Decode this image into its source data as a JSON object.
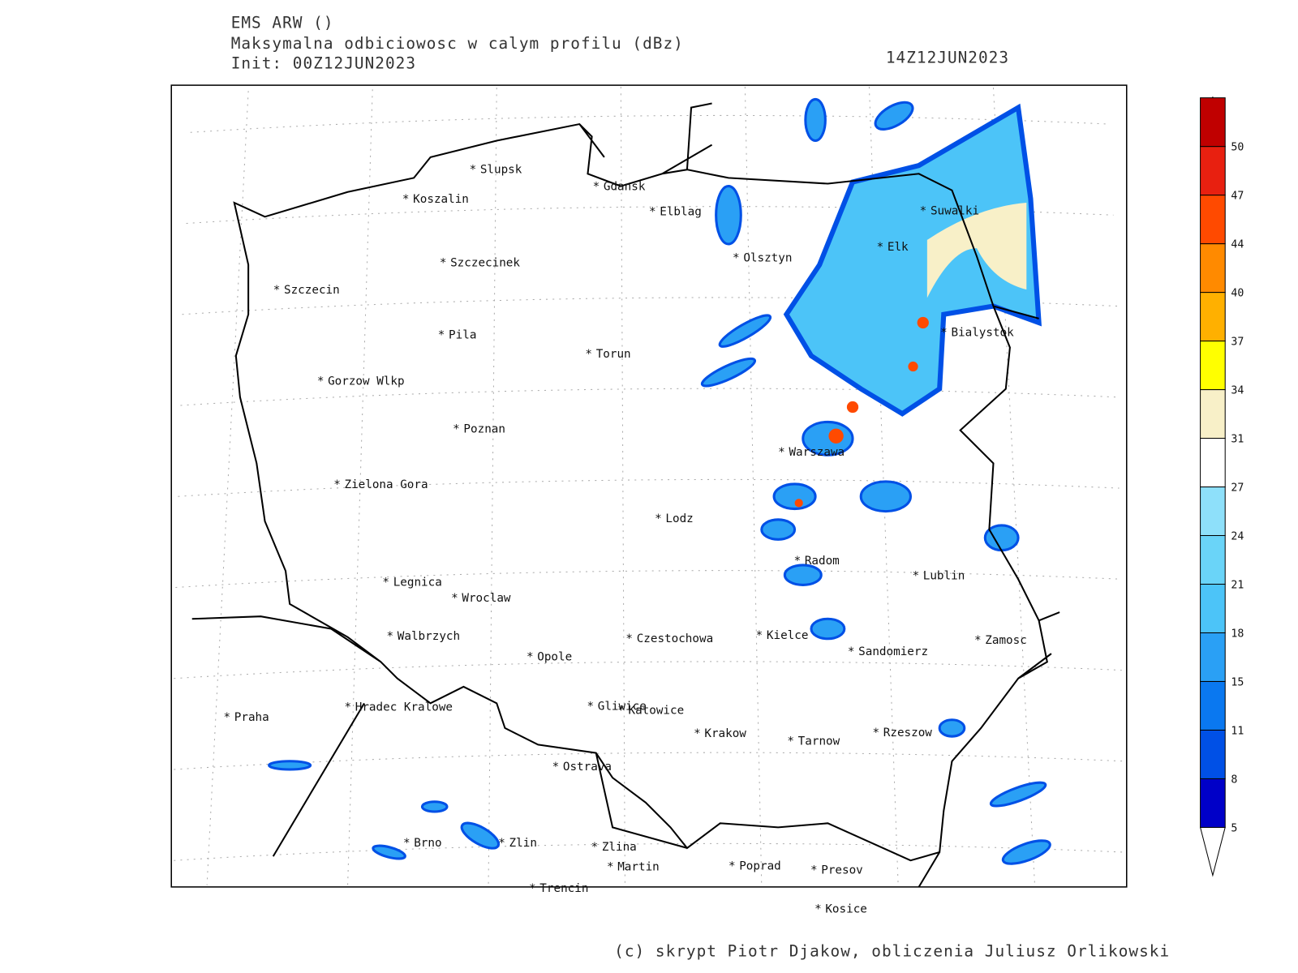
{
  "header": {
    "line1": "EMS ARW ()",
    "line2": "Maksymalna odbiciowosc w calym profilu (dBz)",
    "line3": "Init: 00Z12JUN2023",
    "valid_time": "14Z12JUN2023"
  },
  "cities": [
    "Slupsk",
    "Koszalin",
    "Gdansk",
    "Elblag",
    "Szczecinek",
    "Olsztyn",
    "Suwalki",
    "Elk",
    "Szczecin",
    "Pila",
    "Torun",
    "Bialystok",
    "Gorzow Wlkp",
    "Poznan",
    "Warszawa",
    "Zielona Gora",
    "Lodz",
    "Radom",
    "Lublin",
    "Legnica",
    "Wroclaw",
    "Walbrzych",
    "Czestochowa",
    "Kielce",
    "Zamosc",
    "Sandomierz",
    "Opole",
    "Praha",
    "Hradec Kralowe",
    "Gliwice",
    "Katowice",
    "Krakow",
    "Tarnow",
    "Rzeszow",
    "Ostrava",
    "Brno",
    "Zlin",
    "Zlina",
    "Martin",
    "Poprad",
    "Presov",
    "Trencin",
    "Kosice"
  ],
  "colorbar": {
    "levels": [
      5,
      8,
      11,
      15,
      18,
      21,
      24,
      27,
      31,
      34,
      37,
      40,
      44,
      47,
      50
    ],
    "colors": [
      "#0000c8",
      "#0050e6",
      "#0a78f0",
      "#2aa0f5",
      "#4cc4f8",
      "#6ad4f8",
      "#8ee0fa",
      "#ffffff",
      "#f8f0c8",
      "#ffff00",
      "#ffb000",
      "#ff8a00",
      "#ff4a00",
      "#e82010",
      "#c00000"
    ]
  },
  "footer": "(c) skrypt Piotr Djakow, obliczenia Juliusz Orlikowski"
}
